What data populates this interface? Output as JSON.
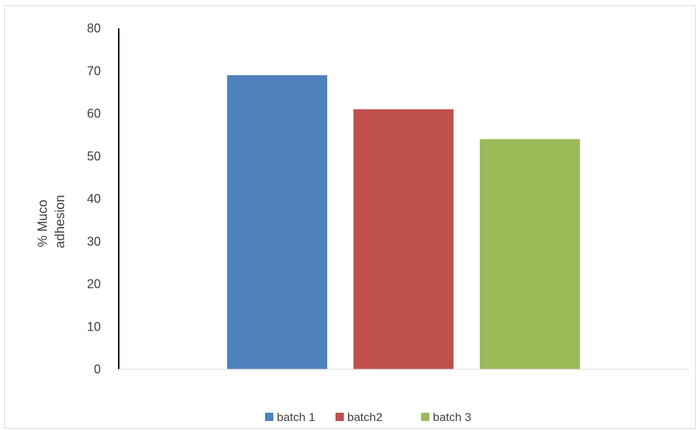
{
  "chart_data": {
    "type": "bar",
    "categories": [
      "batch 1",
      "batch2",
      "batch 3"
    ],
    "series": [
      {
        "name": "batch 1",
        "value": 69,
        "color": "#4F81BD"
      },
      {
        "name": "batch2",
        "value": 61,
        "color": "#C0504D"
      },
      {
        "name": "batch 3",
        "value": 54,
        "color": "#9BBB59"
      }
    ],
    "ylabel": [
      "% Muco",
      "adhesion"
    ],
    "ylim": [
      0,
      80
    ],
    "yticks": [
      0,
      10,
      20,
      30,
      40,
      50,
      60,
      70,
      80
    ],
    "grid": false,
    "legend": "bottom"
  }
}
